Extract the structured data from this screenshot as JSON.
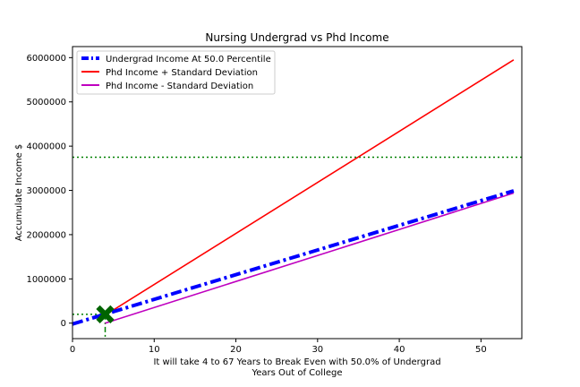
{
  "chart_data": {
    "type": "line",
    "title": "Nursing Undergrad vs Phd Income",
    "xlabel_line1": "It will take 4 to 67 Years to Break Even with 50.0% of Undergrad",
    "xlabel_line2": "Years Out of College",
    "ylabel": "Accumulate Income $",
    "xlim": [
      0,
      55
    ],
    "ylim": [
      -350000,
      6250000
    ],
    "x_ticks": [
      "0",
      "10",
      "20",
      "30",
      "40",
      "50"
    ],
    "y_ticks": [
      "0",
      "1000000",
      "2000000",
      "3000000",
      "4000000",
      "5000000",
      "6000000"
    ],
    "legend_position": "upper-left",
    "series": [
      {
        "name": "Undergrad Income At 50.0 Percentile",
        "color": "#0000ff",
        "style": "dashdot",
        "points": [
          [
            0,
            -20000
          ],
          [
            54,
            2990000
          ]
        ]
      },
      {
        "name": "Phd Income + Standard Deviation",
        "color": "#ff0000",
        "style": "solid",
        "points": [
          [
            4,
            180000
          ],
          [
            54,
            5950000
          ]
        ]
      },
      {
        "name": "Phd Income - Standard Deviation",
        "color": "#bf00bf",
        "style": "solid",
        "points": [
          [
            4,
            0
          ],
          [
            54,
            2940000
          ]
        ]
      }
    ],
    "reference_lines": {
      "horizontal_upper_y": 3750000,
      "horizontal_lower_y": 200000,
      "vertical_x": 4,
      "color": "#008000"
    },
    "break_even_marker": {
      "x": 4,
      "y": 200000,
      "color": "#006400",
      "symbol": "X"
    }
  }
}
